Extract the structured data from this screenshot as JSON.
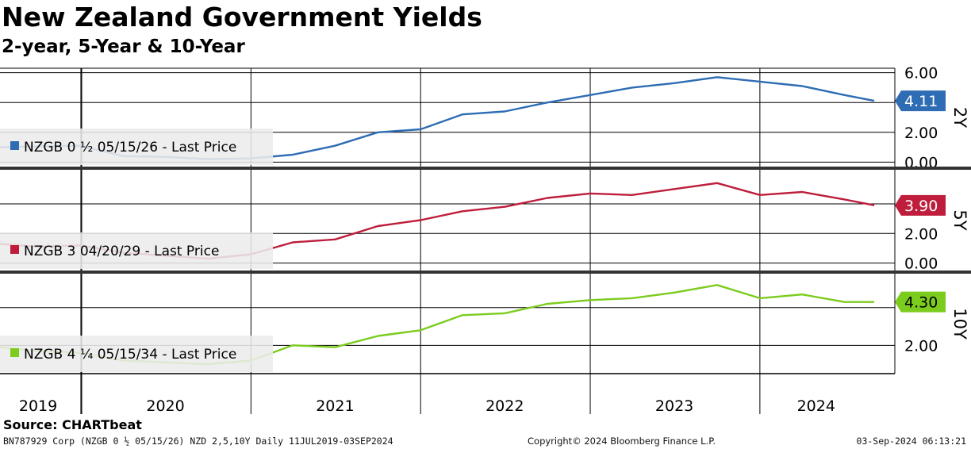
{
  "title": "New Zealand Government Yields",
  "subtitle": "2-year, 5-Year & 10-Year",
  "source": "Source: CHARTbeat",
  "footer": {
    "left": "BN787929 Corp (NZGB 0 ½ 05/15/26) NZD 2,5,10Y  Daily 11JUL2019-03SEP2024",
    "center": "Copyright© 2024 Bloomberg Finance L.P.",
    "right": "03-Sep-2024 06:13:21"
  },
  "colors": {
    "2Y": "#2e6db4",
    "5Y": "#be1e3c",
    "10Y": "#7ccc1e",
    "gridline": "#000000",
    "divider": "#333333"
  },
  "chart_data": [
    {
      "type": "line",
      "panel": "2Y",
      "legend": "NZGB 0 ½ 05/15/26 - Last Price",
      "last_value_label": "4.11",
      "ylim": [
        -0.3,
        6.3
      ],
      "yticks": [
        0,
        2,
        4,
        6
      ],
      "ytick_labels": [
        "0.00",
        "2.00",
        "",
        "6.00"
      ],
      "x": [
        "2019-07-11",
        "2019-10-01",
        "2020-01-01",
        "2020-04-01",
        "2020-07-01",
        "2020-10-01",
        "2021-01-01",
        "2021-04-01",
        "2021-07-01",
        "2021-10-01",
        "2022-01-01",
        "2022-04-01",
        "2022-07-01",
        "2022-10-01",
        "2023-01-01",
        "2023-04-01",
        "2023-07-01",
        "2023-10-01",
        "2024-01-01",
        "2024-04-01",
        "2024-07-01",
        "2024-09-03"
      ],
      "values": [
        1.0,
        1.05,
        1.1,
        0.4,
        0.35,
        0.2,
        0.25,
        0.5,
        1.1,
        2.0,
        2.2,
        3.2,
        3.4,
        4.0,
        4.5,
        5.0,
        5.3,
        5.7,
        5.4,
        5.1,
        4.5,
        4.11
      ]
    },
    {
      "type": "line",
      "panel": "5Y",
      "legend": "NZGB 3 04/20/29 - Last Price",
      "last_value_label": "3.90",
      "ylim": [
        -0.5,
        6.3
      ],
      "yticks": [
        0,
        2,
        4
      ],
      "ytick_labels": [
        "0.00",
        "2.00",
        ""
      ],
      "x": [
        "2019-07-11",
        "2019-10-01",
        "2020-01-01",
        "2020-04-01",
        "2020-07-01",
        "2020-10-01",
        "2021-01-01",
        "2021-04-01",
        "2021-07-01",
        "2021-10-01",
        "2022-01-01",
        "2022-04-01",
        "2022-07-01",
        "2022-10-01",
        "2023-01-01",
        "2023-04-01",
        "2023-07-01",
        "2023-10-01",
        "2024-01-01",
        "2024-04-01",
        "2024-07-01",
        "2024-09-03"
      ],
      "values": [
        1.3,
        1.1,
        1.2,
        0.7,
        0.5,
        0.3,
        0.6,
        1.4,
        1.6,
        2.5,
        2.9,
        3.5,
        3.8,
        4.4,
        4.7,
        4.6,
        5.0,
        5.4,
        4.6,
        4.8,
        4.3,
        3.9
      ]
    },
    {
      "type": "line",
      "panel": "10Y",
      "legend": "NZGB 4 ¼ 05/15/34 - Last Price",
      "last_value_label": "4.30",
      "ylim": [
        0.5,
        5.8
      ],
      "yticks": [
        2,
        4
      ],
      "ytick_labels": [
        "2.00",
        ""
      ],
      "x": [
        "2019-07-11",
        "2019-10-01",
        "2020-01-01",
        "2020-04-01",
        "2020-07-01",
        "2020-10-01",
        "2021-01-01",
        "2021-04-01",
        "2021-07-01",
        "2021-10-01",
        "2022-01-01",
        "2022-04-01",
        "2022-07-01",
        "2022-10-01",
        "2023-01-01",
        "2023-04-01",
        "2023-07-01",
        "2023-10-01",
        "2024-01-01",
        "2024-04-01",
        "2024-07-01",
        "2024-09-03"
      ],
      "values": [
        1.9,
        1.7,
        1.6,
        1.2,
        1.1,
        1.0,
        1.2,
        2.0,
        1.9,
        2.5,
        2.8,
        3.6,
        3.7,
        4.2,
        4.4,
        4.5,
        4.8,
        5.2,
        4.5,
        4.7,
        4.3,
        4.3
      ]
    }
  ],
  "x_axis": {
    "labels": [
      "2019",
      "2020",
      "2021",
      "2022",
      "2023",
      "2024"
    ],
    "label_dates": [
      "2019-10-01",
      "2020-07-01",
      "2021-07-01",
      "2022-07-01",
      "2023-07-01",
      "2024-05-01"
    ],
    "year_boundaries": [
      "2020-01-01",
      "2021-01-01",
      "2022-01-01",
      "2023-01-01",
      "2024-01-01"
    ],
    "start": "2019-07-11",
    "end": "2024-09-03"
  }
}
